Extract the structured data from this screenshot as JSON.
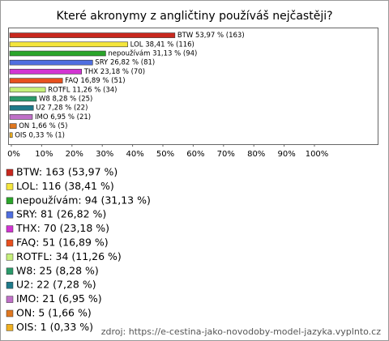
{
  "chart_data": {
    "type": "bar",
    "orientation": "horizontal",
    "title": "Které akronymy z angličtiny používáš nejčastěji?",
    "categories": [
      "BTW",
      "LOL",
      "nepoužívám",
      "SRY",
      "THX",
      "FAQ",
      "ROTFL",
      "W8",
      "U2",
      "IMO",
      "ON",
      "OIS"
    ],
    "values": [
      53.97,
      38.41,
      31.13,
      26.82,
      23.18,
      16.89,
      11.26,
      8.28,
      7.28,
      6.95,
      1.66,
      0.33
    ],
    "value_labels": [
      "BTW 53,97 % (163)",
      "LOL 38,41 % (116)",
      "nepoužívám 31,13 % (94)",
      "SRY 26,82 % (81)",
      "THX 23,18 % (70)",
      "FAQ 16,89 % (51)",
      "ROTFL 11,26 % (34)",
      "W8 8,28 % (25)",
      "U2 7,28 % (22)",
      "IMO 6,95 % (21)",
      "ON 1,66 % (5)",
      "OIS 0,33 % (1)"
    ],
    "legend_labels": [
      "BTW: 163 (53,97 %)",
      "LOL: 116 (38,41 %)",
      "nepoužívám: 94 (31,13 %)",
      "SRY: 81 (26,82 %)",
      "THX: 70 (23,18 %)",
      "FAQ: 51 (16,89 %)",
      "ROTFL: 34 (11,26 %)",
      "W8: 25 (8,28 %)",
      "U2: 22 (7,28 %)",
      "IMO: 21 (6,95 %)",
      "ON: 5 (1,66 %)",
      "OIS: 1 (0,33 %)"
    ],
    "colors": [
      "#c8281e",
      "#f5e63c",
      "#2aa52a",
      "#4f6ee0",
      "#d234d2",
      "#e8501e",
      "#c6f07a",
      "#2a9a6a",
      "#1e7a8a",
      "#c070c8",
      "#e07820",
      "#f0b020"
    ],
    "xlim": [
      0,
      100
    ],
    "xticks": [
      {
        "value": 0,
        "label": "0%"
      },
      {
        "value": 10,
        "label": "10%"
      },
      {
        "value": 20,
        "label": "20%"
      },
      {
        "value": 30,
        "label": "30%"
      },
      {
        "value": 40,
        "label": "40%"
      },
      {
        "value": 50,
        "label": "50%"
      },
      {
        "value": 60,
        "label": "60%"
      },
      {
        "value": 70,
        "label": "70%"
      },
      {
        "value": 80,
        "label": "80%"
      },
      {
        "value": 90,
        "label": "90%"
      },
      {
        "value": 100,
        "label": "100%"
      }
    ],
    "source": "zdroj: https://e-cestina-jako-novodoby-model-jazyka.vyplnto.cz"
  }
}
